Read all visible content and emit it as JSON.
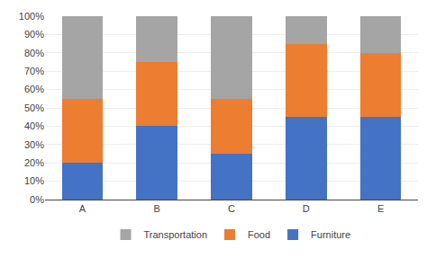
{
  "chart_data": {
    "type": "bar",
    "stacked": true,
    "categories": [
      "A",
      "B",
      "C",
      "D",
      "E"
    ],
    "series": [
      {
        "name": "Furniture",
        "color": "#4472C4",
        "values": [
          20,
          40,
          25,
          45,
          45
        ]
      },
      {
        "name": "Food",
        "color": "#ED7D31",
        "values": [
          35,
          35,
          30,
          40,
          35
        ]
      },
      {
        "name": "Transportation",
        "color": "#A5A5A5",
        "values": [
          45,
          25,
          45,
          15,
          20
        ]
      }
    ],
    "ylim": [
      0,
      100
    ],
    "yticks": [
      {
        "value": 0,
        "label": "0%"
      },
      {
        "value": 10,
        "label": "10%"
      },
      {
        "value": 20,
        "label": "20%"
      },
      {
        "value": 30,
        "label": "30%"
      },
      {
        "value": 40,
        "label": "40%"
      },
      {
        "value": 50,
        "label": "50%"
      },
      {
        "value": 60,
        "label": "60%"
      },
      {
        "value": 70,
        "label": "70%"
      },
      {
        "value": 80,
        "label": "80%"
      },
      {
        "value": 90,
        "label": "90%"
      },
      {
        "value": 100,
        "label": "100%"
      }
    ],
    "grid": true,
    "legend": "bottom"
  }
}
